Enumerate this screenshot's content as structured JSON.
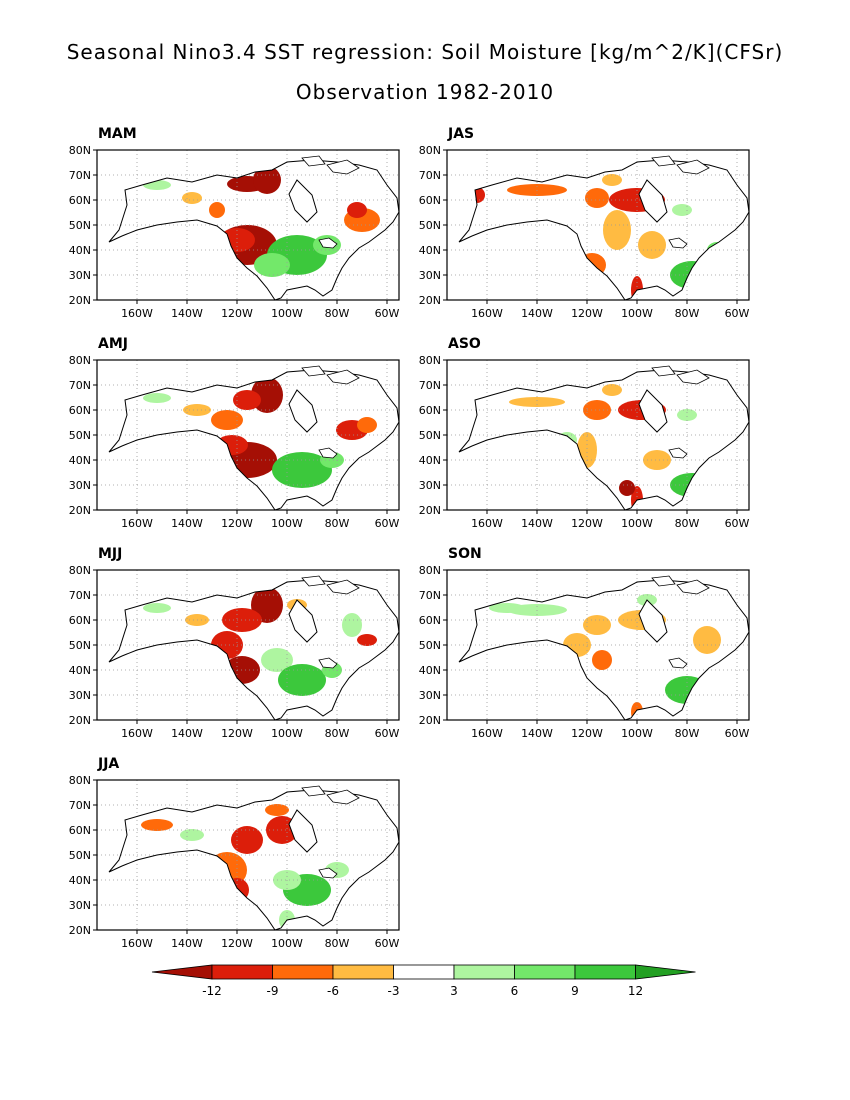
{
  "title_line1": "Seasonal Nino3.4 SST regression: Soil Moisture [kg/m^2/K](CFSr)",
  "title_line2": "Observation 1982-2010",
  "lat_ticks": [
    "80N",
    "70N",
    "60N",
    "50N",
    "40N",
    "30N",
    "20N"
  ],
  "lon_ticks": [
    "160W",
    "140W",
    "120W",
    "100W",
    "80W",
    "60W"
  ],
  "panels": [
    {
      "label": "MAM"
    },
    {
      "label": "JAS"
    },
    {
      "label": "AMJ"
    },
    {
      "label": "ASO"
    },
    {
      "label": "MJJ"
    },
    {
      "label": "SON"
    },
    {
      "label": "JJA"
    }
  ],
  "colorbar": {
    "labels": [
      "-12",
      "-9",
      "-6",
      "-3",
      "3",
      "6",
      "9",
      "12"
    ],
    "colors": [
      "#a50f05",
      "#dc1e0a",
      "#ff6a0a",
      "#ffbb42",
      "#ffffff",
      "#aef5a0",
      "#73e86a",
      "#3cc83c",
      "#23a023"
    ]
  },
  "map_colors": {
    "dark_red": "#a50f05",
    "red": "#dc1e0a",
    "orange": "#ff6a0a",
    "light_orange": "#ffbb42",
    "light_green": "#aef5a0",
    "green": "#73e86a",
    "mid_green": "#3cc83c",
    "dark_green": "#23a023"
  }
}
